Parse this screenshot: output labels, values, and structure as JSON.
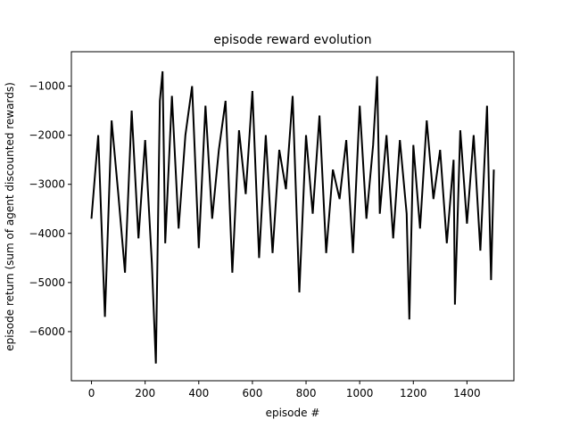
{
  "chart_data": {
    "type": "line",
    "title": "episode reward evolution",
    "xlabel": "episode #",
    "ylabel": "episode return (sum of agent discounted rewards)",
    "xlim": [
      -75,
      1575
    ],
    "ylim": [
      -7000,
      -300
    ],
    "xticks": [
      0,
      200,
      400,
      600,
      800,
      1000,
      1200,
      1400
    ],
    "yticks": [
      -1000,
      -2000,
      -3000,
      -4000,
      -5000,
      -6000
    ],
    "xtick_labels": [
      "0",
      "200",
      "400",
      "600",
      "800",
      "1000",
      "1200",
      "1400"
    ],
    "ytick_labels": [
      "−1000",
      "−2000",
      "−3000",
      "−4000",
      "−5000",
      "−6000"
    ],
    "grid": false,
    "series": [
      {
        "color": "#000000",
        "x": [
          0,
          25,
          50,
          75,
          100,
          125,
          150,
          175,
          200,
          225,
          240,
          255,
          265,
          275,
          300,
          325,
          350,
          375,
          400,
          425,
          450,
          475,
          500,
          525,
          550,
          575,
          600,
          625,
          650,
          675,
          700,
          725,
          750,
          775,
          800,
          825,
          850,
          875,
          900,
          925,
          950,
          975,
          1000,
          1025,
          1050,
          1065,
          1075,
          1100,
          1125,
          1150,
          1175,
          1185,
          1200,
          1225,
          1250,
          1275,
          1300,
          1325,
          1350,
          1355,
          1375,
          1400,
          1425,
          1450,
          1475,
          1490,
          1500
        ],
        "y": [
          -3700,
          -2000,
          -5700,
          -1700,
          -3200,
          -4800,
          -1500,
          -4100,
          -2100,
          -4600,
          -6650,
          -1300,
          -700,
          -4200,
          -1200,
          -3900,
          -2000,
          -1000,
          -4300,
          -1400,
          -3700,
          -2300,
          -1300,
          -4800,
          -1900,
          -3200,
          -1100,
          -4500,
          -2000,
          -4400,
          -2300,
          -3100,
          -1200,
          -5200,
          -2000,
          -3600,
          -1600,
          -4400,
          -2700,
          -3300,
          -2100,
          -4400,
          -1400,
          -3700,
          -2200,
          -800,
          -3600,
          -2000,
          -4100,
          -2100,
          -3600,
          -5750,
          -2200,
          -3900,
          -1700,
          -3300,
          -2300,
          -4200,
          -2500,
          -5450,
          -1900,
          -3800,
          -2000,
          -4350,
          -1400,
          -4950,
          -2700
        ]
      }
    ]
  }
}
